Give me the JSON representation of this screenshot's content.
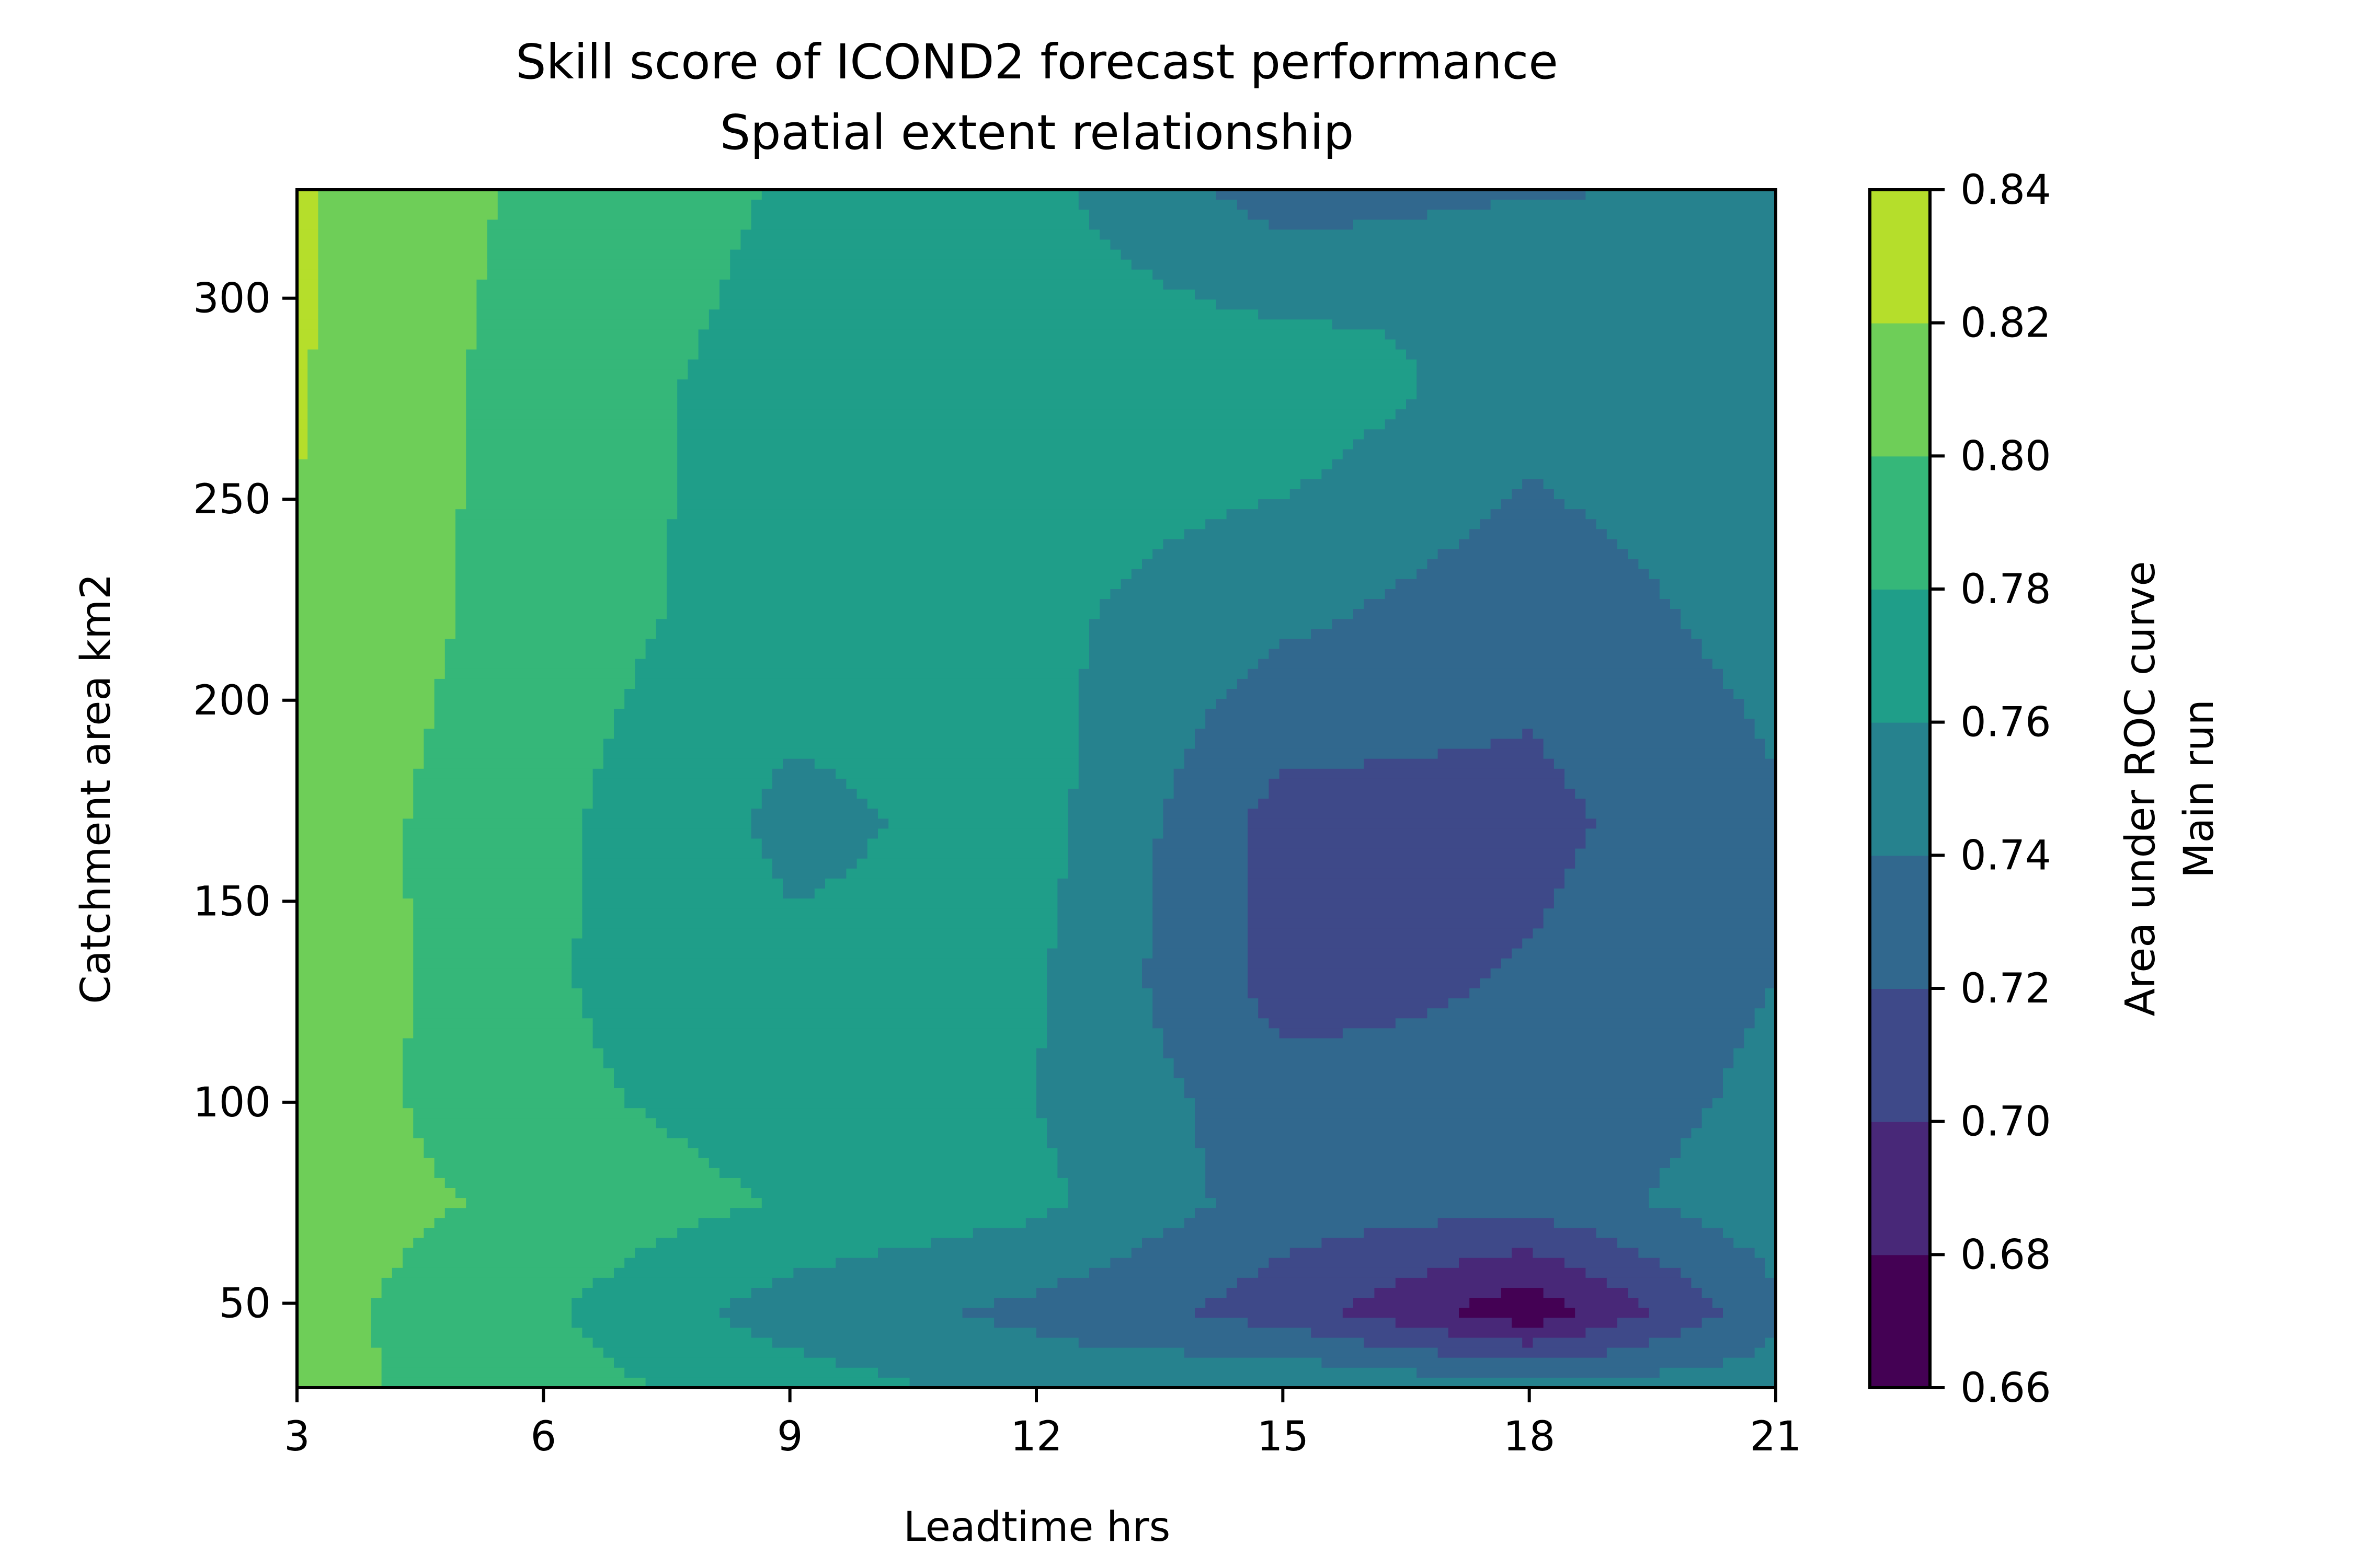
{
  "chart_data": {
    "type": "contourf",
    "title": "Skill score of ICOND2 forecast performance",
    "subtitle": "Spatial extent relationship",
    "xlabel": "Leadtime hrs",
    "ylabel": "Catchment area km2",
    "colorbar_label": "Area under ROC curve",
    "colorbar_sublabel": "Main run",
    "colormap": "viridis",
    "xlim": [
      3,
      21
    ],
    "ylim": [
      29,
      327
    ],
    "x_ticks": [
      "3",
      "6",
      "9",
      "12",
      "15",
      "18",
      "21"
    ],
    "y_ticks": [
      "50",
      "100",
      "150",
      "200",
      "250",
      "300"
    ],
    "colorbar_ticks": [
      "0.66",
      "0.68",
      "0.70",
      "0.72",
      "0.74",
      "0.76",
      "0.78",
      "0.80",
      "0.82",
      "0.84"
    ],
    "levels": [
      0.66,
      0.68,
      0.7,
      0.72,
      0.74,
      0.76,
      0.78,
      0.8,
      0.82,
      0.84
    ],
    "level_colors": [
      "#440154",
      "#482878",
      "#3e4989",
      "#31688e",
      "#26828e",
      "#1f9e89",
      "#35b779",
      "#6ece58",
      "#b5de2b",
      "#fde725"
    ],
    "x": [
      3,
      6,
      9,
      12,
      15,
      18,
      21
    ],
    "y": [
      29,
      48,
      75,
      100,
      130,
      170,
      222,
      278,
      300,
      327
    ],
    "z": [
      [
        0.807,
        0.788,
        0.77,
        0.752,
        0.76,
        0.748,
        0.75
      ],
      [
        0.807,
        0.783,
        0.75,
        0.735,
        0.71,
        0.665,
        0.735
      ],
      [
        0.81,
        0.795,
        0.778,
        0.765,
        0.73,
        0.728,
        0.753
      ],
      [
        0.812,
        0.785,
        0.77,
        0.76,
        0.728,
        0.725,
        0.745
      ],
      [
        0.815,
        0.782,
        0.765,
        0.762,
        0.712,
        0.722,
        0.74
      ],
      [
        0.812,
        0.785,
        0.755,
        0.768,
        0.712,
        0.714,
        0.737
      ],
      [
        0.818,
        0.79,
        0.77,
        0.765,
        0.745,
        0.728,
        0.748
      ],
      [
        0.822,
        0.79,
        0.772,
        0.77,
        0.775,
        0.748,
        0.758
      ],
      [
        0.822,
        0.792,
        0.775,
        0.77,
        0.755,
        0.76,
        0.745
      ],
      [
        0.823,
        0.795,
        0.778,
        0.765,
        0.73,
        0.738,
        0.743
      ]
    ]
  }
}
